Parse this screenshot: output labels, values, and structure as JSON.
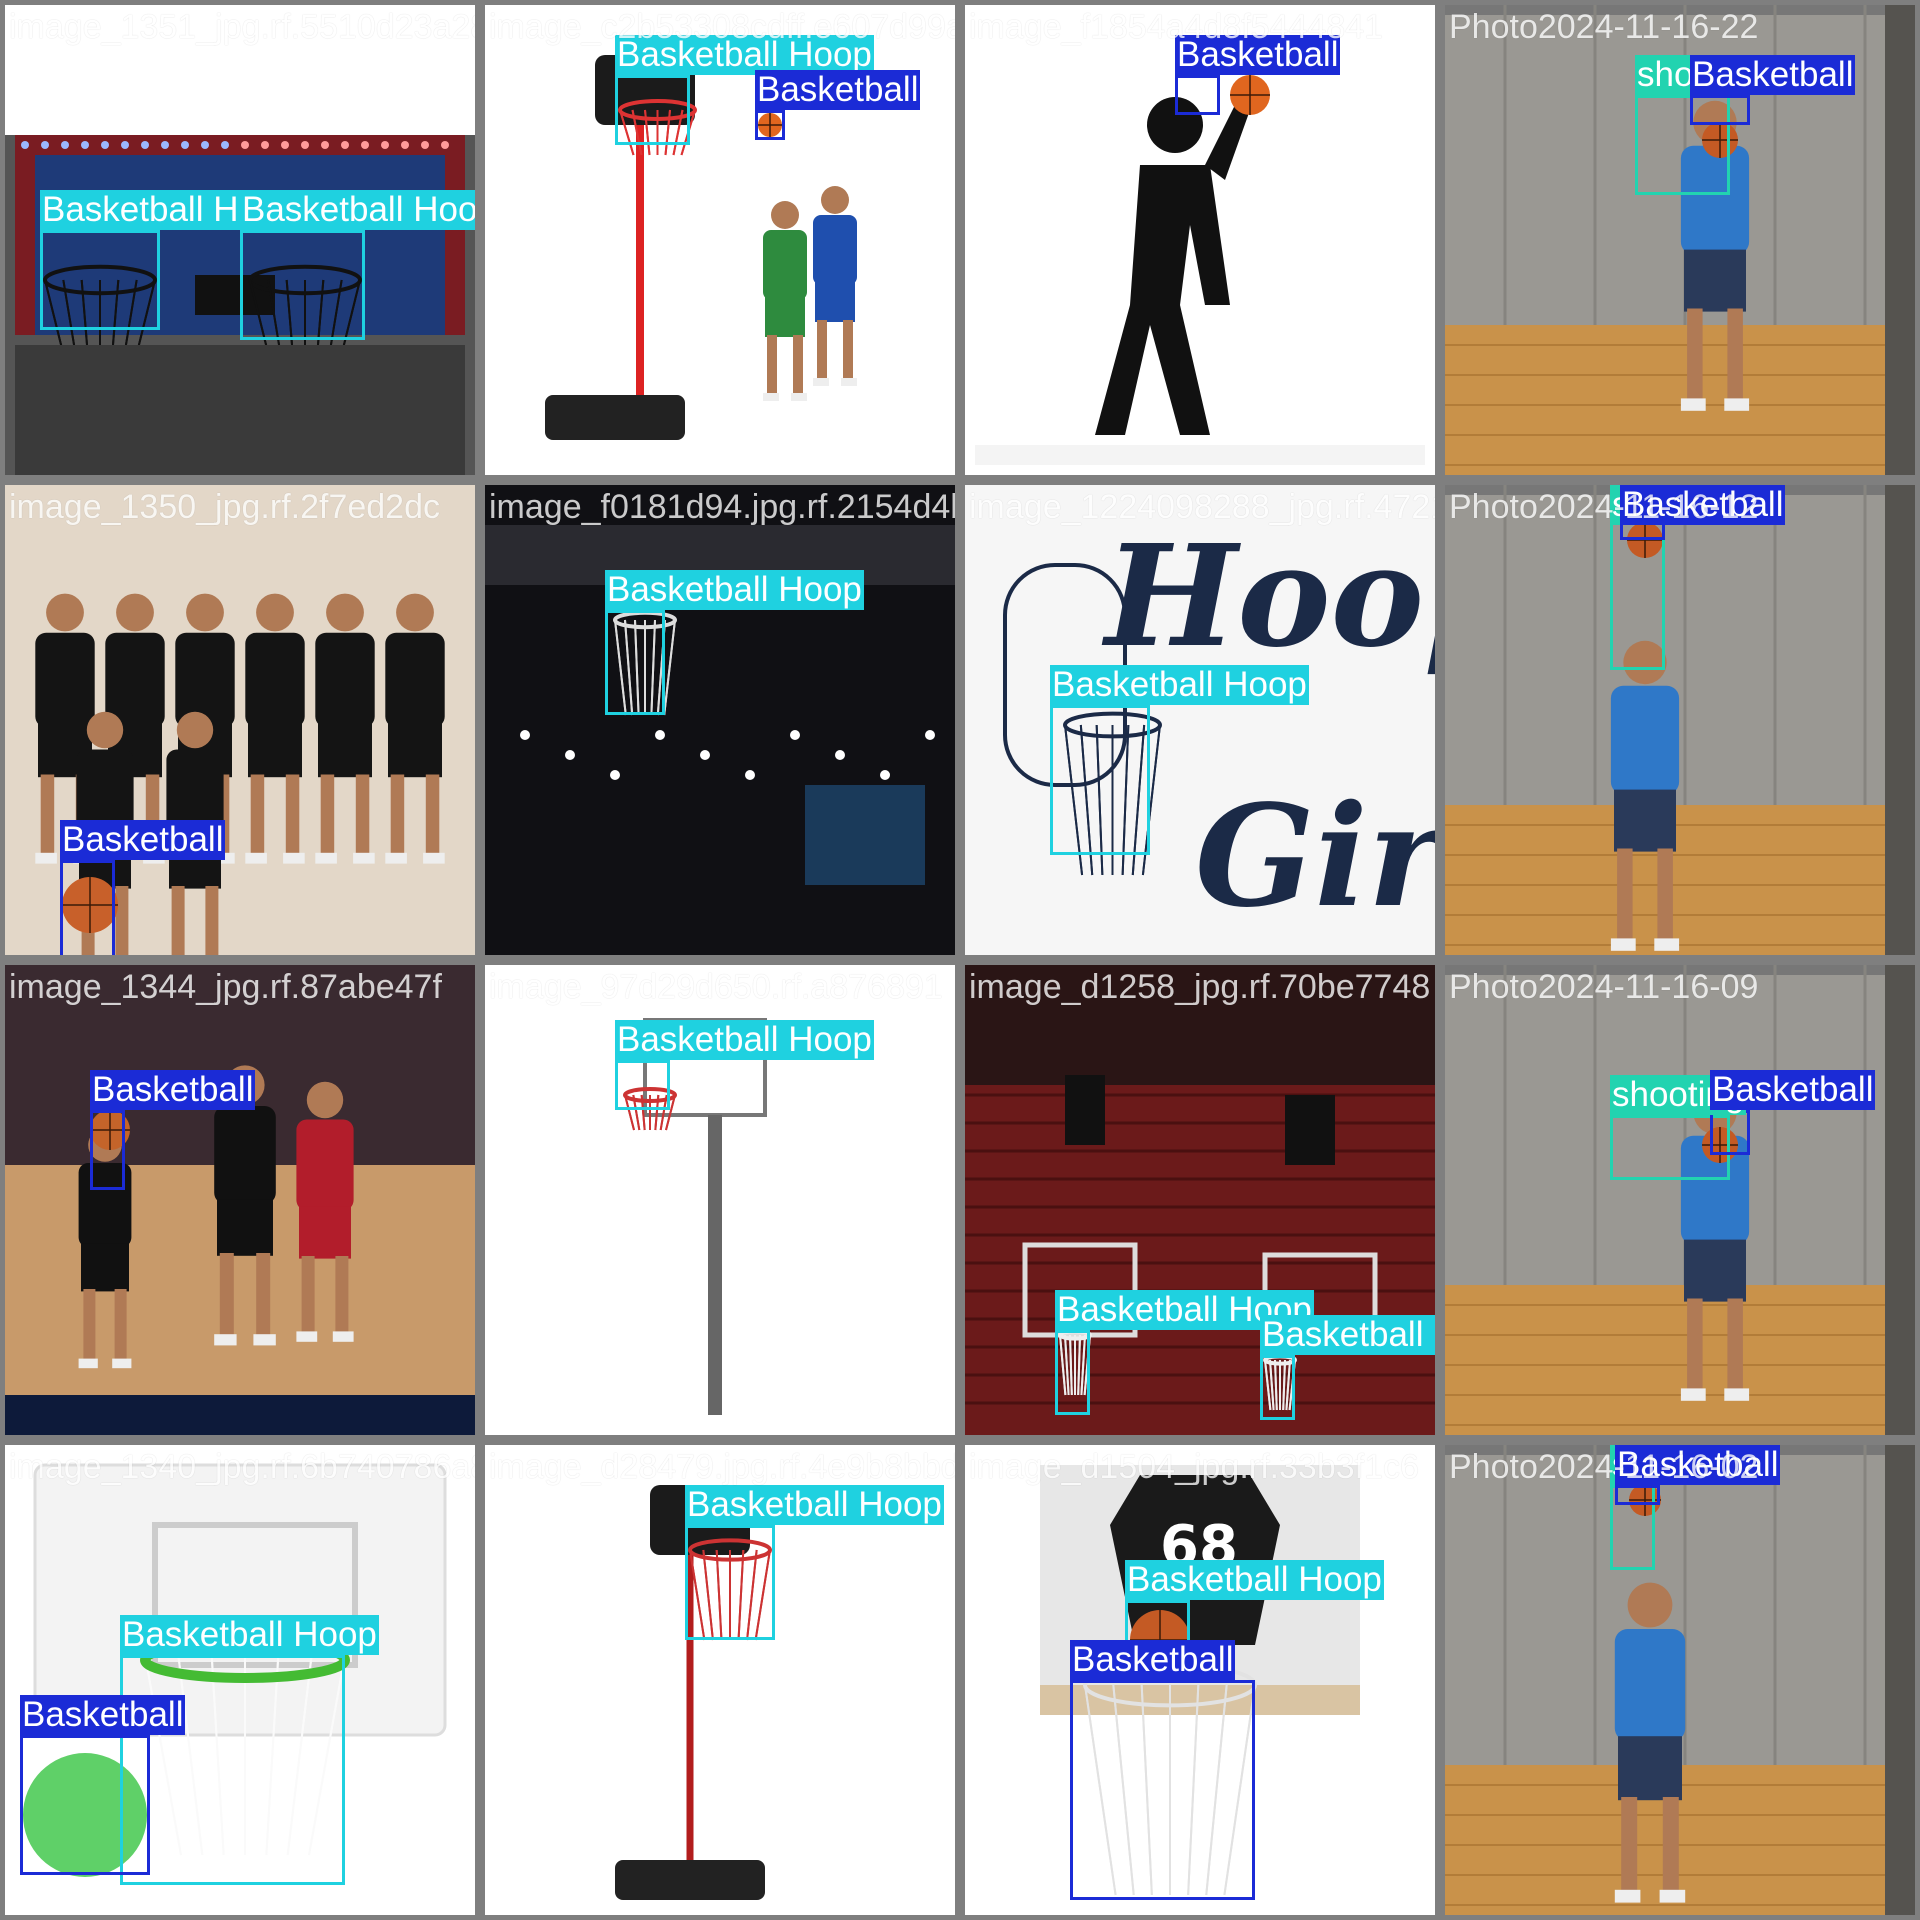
{
  "colors": {
    "Basketball Hoop": "#1fd1e0",
    "Basketball": "#1b2bd6",
    "shooting": "#22d3b0",
    "grid_border": "#7f7f7f"
  },
  "tiles": [
    {
      "file": "image_1351_jpg.rf.5510d23a28ae22b330f8cdff.e607d99a2a8bf1854a4d8f5444841",
      "scene": "arcade",
      "detections": [
        {
          "label": "Basketball Hoop",
          "icon": "hoop-net"
        },
        {
          "label": "Basketball Hoop",
          "icon": "hoop-net"
        }
      ]
    },
    {
      "file": "image_c2b53308cdff.e607d99a2a8bf1854",
      "scene": "stand-kids",
      "detections": [
        {
          "label": "Basketball Hoop",
          "icon": "hoop-net"
        },
        {
          "label": "Basketball",
          "icon": "basketball-icon"
        }
      ]
    },
    {
      "file": "image_f1854a4d8f5444841",
      "scene": "pictogram",
      "detections": [
        {
          "label": "Basketball",
          "icon": "basketball-icon"
        }
      ]
    },
    {
      "file": "Photo2024-11-16-22",
      "scene": "gym-shot",
      "detections": [
        {
          "label": "shooting",
          "icon": "person-icon"
        },
        {
          "label": "Basketball",
          "icon": "basketball-icon"
        }
      ]
    },
    {
      "file": "image_1350_jpg.rf.2f7ed2dc",
      "scene": "team",
      "detections": [
        {
          "label": "Basketball",
          "icon": "basketball-icon"
        }
      ]
    },
    {
      "file": "image_f0181d94.jpg.rf.2154d4b0",
      "scene": "arena-dark",
      "detections": [
        {
          "label": "Basketball Hoop",
          "icon": "hoop-net"
        }
      ]
    },
    {
      "file": "image_1224098288_jpg.rf.47219b3c5836f1826",
      "scene": "hoop-girl",
      "detections": [
        {
          "label": "Basketball Hoop",
          "icon": "hoop-net"
        }
      ]
    },
    {
      "file": "Photo2024-11-16-12",
      "scene": "gym-jump",
      "detections": [
        {
          "label": "shooting",
          "icon": "person-icon"
        },
        {
          "label": "Basketball",
          "icon": "basketball-icon"
        }
      ]
    },
    {
      "file": "image_1344_jpg.rf.87abe47f",
      "scene": "broadcast",
      "detections": [
        {
          "label": "Basketball",
          "icon": "basketball-icon"
        }
      ]
    },
    {
      "file": "image_97d29d650.rf.a876891",
      "scene": "pole-hoop",
      "detections": [
        {
          "label": "Basketball Hoop",
          "icon": "hoop-net"
        }
      ]
    },
    {
      "file": "image_d1258_jpg.rf.70be7748",
      "scene": "cavs-arena",
      "detections": [
        {
          "label": "Basketball Hoop",
          "icon": "hoop-net"
        },
        {
          "label": "Basketball Hoop",
          "icon": "hoop-net"
        }
      ]
    },
    {
      "file": "Photo2024-11-16-09",
      "scene": "gym-shot2",
      "detections": [
        {
          "label": "shooting",
          "icon": "person-icon"
        },
        {
          "label": "Basketball",
          "icon": "basketball-icon"
        }
      ]
    },
    {
      "file": "image_1340_jpg.rf.6b740786a8028479",
      "scene": "mini-hoop",
      "detections": [
        {
          "label": "Basketball Hoop",
          "icon": "hoop-net"
        },
        {
          "label": "Basketball",
          "icon": "basketball-icon"
        }
      ]
    },
    {
      "file": "image_d28479.jpg.rf.4e9b8bbd",
      "scene": "stand-red",
      "detections": [
        {
          "label": "Basketball Hoop",
          "icon": "hoop-net"
        }
      ]
    },
    {
      "file": "image_d1504_jpg.rf.33b3f1c6",
      "scene": "jersey",
      "detections": [
        {
          "label": "Basketball",
          "icon": "basketball-icon"
        },
        {
          "label": "Basketball Hoop",
          "icon": "hoop-net"
        }
      ]
    },
    {
      "file": "Photo2024-11-16-02",
      "scene": "gym-reach",
      "detections": [
        {
          "label": "shooting",
          "icon": "person-icon"
        },
        {
          "label": "Basketball",
          "icon": "basketball-icon"
        }
      ]
    }
  ]
}
